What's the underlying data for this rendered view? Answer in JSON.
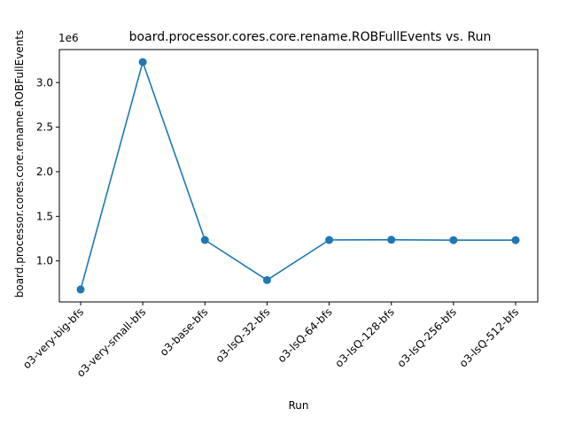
{
  "chart_data": {
    "type": "line",
    "title": "board.processor.cores.core.rename.ROBFullEvents vs. Run",
    "xlabel": "Run",
    "ylabel": "board.processor.cores.core.rename.ROBFullEvents",
    "y_offset_label": "1e6",
    "categories": [
      "o3-very-big-bfs",
      "o3-very-small-bfs",
      "o3-base-bfs",
      "o3-lsQ-32-bfs",
      "o3-lsQ-64-bfs",
      "o3-lsQ-128-bfs",
      "o3-lsQ-256-bfs",
      "o3-lsQ-512-bfs"
    ],
    "series": [
      {
        "values": [
          680000,
          3230000,
          1235000,
          785000,
          1235000,
          1237000,
          1233000,
          1233000
        ],
        "color": "#1f77b4"
      }
    ],
    "ylim": [
      540000,
      3370000
    ],
    "yticks": [
      1000000,
      1500000,
      2000000,
      2500000,
      3000000
    ],
    "ytick_labels": [
      "1.0",
      "1.5",
      "2.0",
      "2.5",
      "3.0"
    ],
    "grid": false,
    "legend": false
  }
}
